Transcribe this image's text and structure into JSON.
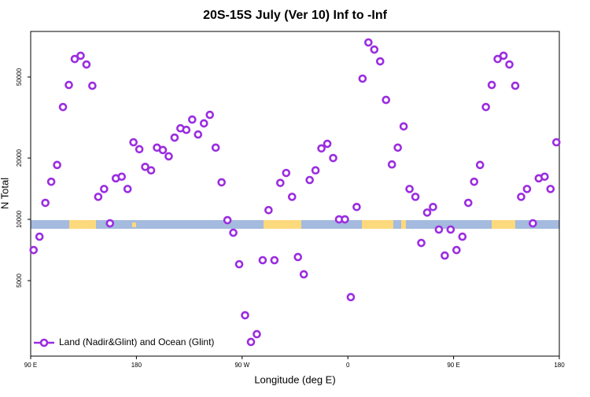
{
  "chart_data": {
    "type": "scatter",
    "title": "20S-15S July (Ver 10)   Inf to -Inf",
    "x_label": "Longitude (deg E)",
    "y_label": "N Total",
    "xlim": [
      90,
      540
    ],
    "xticks": [
      {
        "value": 90,
        "label": "90 E"
      },
      {
        "value": 180,
        "label": "180"
      },
      {
        "value": 270,
        "label": "90 W"
      },
      {
        "value": 360,
        "label": "0"
      },
      {
        "value": 450,
        "label": "90 E"
      },
      {
        "value": 540,
        "label": "180"
      }
    ],
    "ylim": [
      2130,
      83700
    ],
    "yticks": [
      5000,
      10000,
      20000,
      50000
    ],
    "log_y": true,
    "legend_loc": "lower left",
    "series": [
      {
        "name": "Land (Nadir&Glint) and Ocean (Glint)",
        "color": "#9b2de0",
        "x": [
          92.5,
          97.5,
          102.5,
          107.5,
          112.5,
          117.5,
          122.5,
          127.5,
          132.5,
          137.5,
          142.5,
          147.5,
          152.5,
          157.5,
          162.5,
          167.5,
          172.5,
          177.5,
          182.5,
          187.5,
          192.5,
          197.5,
          202.5,
          207.5,
          212.5,
          217.5,
          222.5,
          227.5,
          232.5,
          237.5,
          242.5,
          247.5,
          252.5,
          257.5,
          262.5,
          267.5,
          272.5,
          277.5,
          282.5,
          287.5,
          292.5,
          297.5,
          302.5,
          307.5,
          312.5,
          317.5,
          322.5,
          327.5,
          332.5,
          337.5,
          342.5,
          347.5,
          352.5,
          357.5,
          362.5,
          367.5,
          372.5,
          377.5,
          382.5,
          387.5,
          392.5,
          397.5,
          402.5,
          407.5,
          412.5,
          417.5,
          422.5,
          427.5,
          432.5,
          437.5,
          442.5,
          447.5,
          452.5,
          457.5,
          462.5,
          467.5,
          472.5,
          477.5,
          482.5,
          487.5,
          492.5,
          497.5,
          502.5,
          507.5,
          512.5,
          517.5,
          522.5,
          527.5,
          532.5,
          537.5
        ],
        "values": [
          7070,
          8220,
          12050,
          15300,
          18500,
          35600,
          45700,
          61300,
          63600,
          57600,
          45300,
          12900,
          14100,
          9560,
          15900,
          16200,
          14100,
          23900,
          22100,
          18100,
          17400,
          22500,
          21900,
          20400,
          25200,
          28000,
          27500,
          30900,
          26100,
          29600,
          32600,
          22500,
          15200,
          9910,
          8600,
          6020,
          3380,
          2500,
          2730,
          6300,
          11100,
          6300,
          15100,
          16900,
          12900,
          6530,
          5370,
          15600,
          17400,
          22300,
          23500,
          20000,
          10000,
          10000,
          4150,
          11500,
          49100,
          73900,
          68200,
          59700,
          38600,
          18600,
          22500,
          28600,
          14100,
          12900,
          7660,
          10800,
          11500,
          8910,
          6640,
          8910,
          7070,
          8220,
          12050,
          15300,
          18500,
          35600,
          45700,
          61300,
          63600,
          57600,
          45300,
          12900,
          14100,
          9560,
          15900,
          16200,
          14100,
          23900
        ]
      }
    ]
  }
}
